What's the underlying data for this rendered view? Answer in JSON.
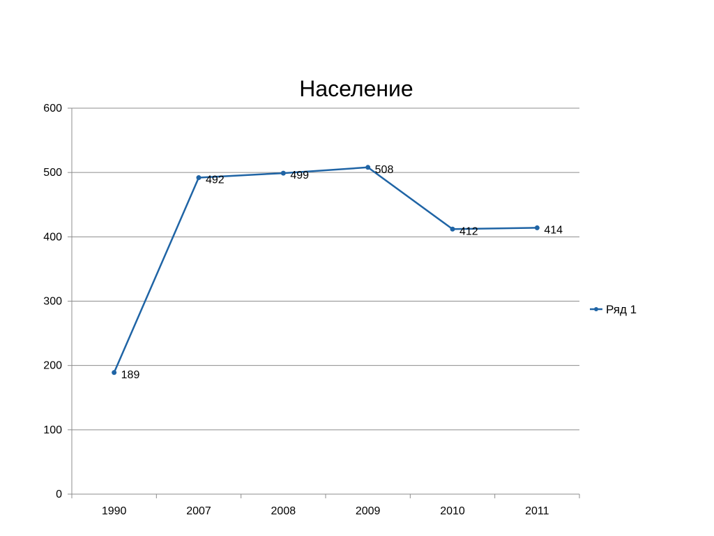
{
  "chart_data": {
    "type": "line",
    "title": "Население",
    "xlabel": "",
    "ylabel": "",
    "categories": [
      "1990",
      "2007",
      "2008",
      "2009",
      "2010",
      "2011"
    ],
    "series": [
      {
        "name": "Ряд 1",
        "values": [
          189,
          492,
          499,
          508,
          412,
          414
        ]
      }
    ],
    "ylim": [
      0,
      600
    ],
    "yticks": [
      0,
      100,
      200,
      300,
      400,
      500,
      600
    ],
    "grid": true,
    "legend": "right",
    "colors": {
      "series": "#1f64a5",
      "grid": "#8c8c8c",
      "axis": "#8c8c8c"
    }
  }
}
